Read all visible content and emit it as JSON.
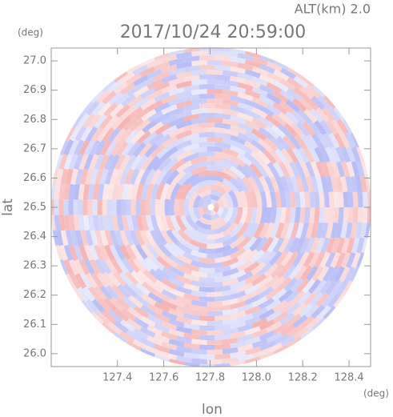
{
  "chart_data": {
    "type": "ppi",
    "title": "2017/10/24 20:59:00",
    "subtitle": "ALT(km) 2.0",
    "xlabel": "lon",
    "ylabel": "lat",
    "xunit": "(deg)",
    "yunit": "(deg)",
    "xlim": [
      127.114,
      128.493
    ],
    "ylim": [
      25.956,
      27.044
    ],
    "xticks": [
      127.4,
      127.6,
      127.8,
      {
        "value": 128,
        "label": "128.0"
      },
      128.2,
      128.4
    ],
    "yticks": [
      {
        "value": 26,
        "label": "26.0"
      },
      26.1,
      26.2,
      26.3,
      26.4,
      26.5,
      26.6,
      26.7,
      26.8,
      26.9,
      {
        "value": 27,
        "label": "27.0"
      }
    ],
    "colors": [
      "#f4a6a6",
      "#aab0f4"
    ]
  }
}
